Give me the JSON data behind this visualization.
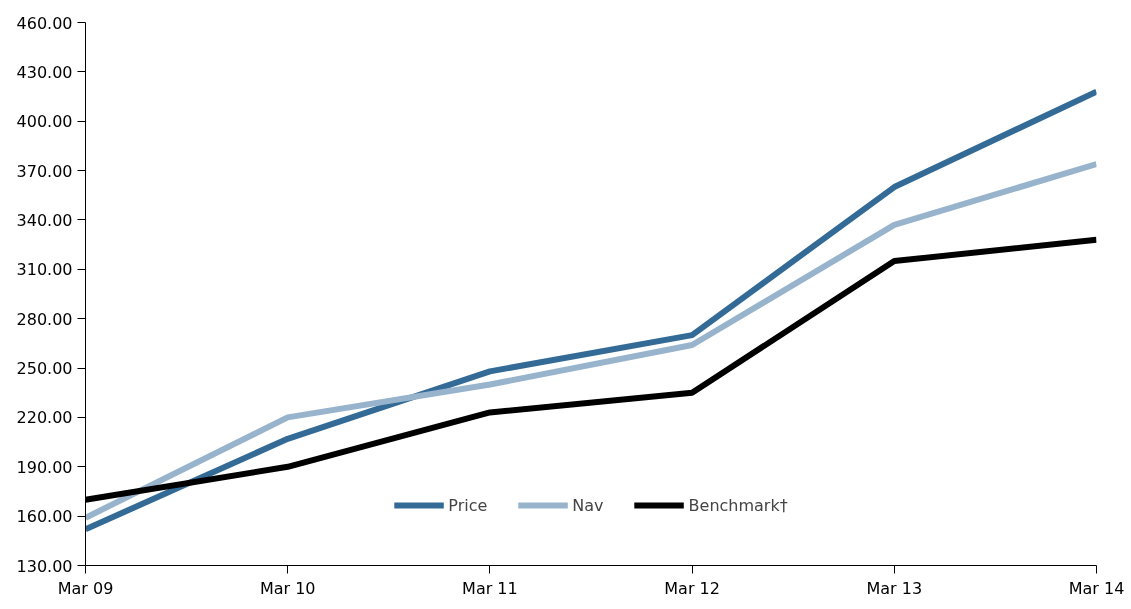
{
  "chart_data": {
    "type": "line",
    "categories": [
      "Mar 09",
      "Mar 10",
      "Mar 11",
      "Mar 12",
      "Mar 13",
      "Mar 14"
    ],
    "series": [
      {
        "name": "Price",
        "color": "#336b96",
        "values": [
          152,
          207,
          248,
          270,
          360,
          418
        ]
      },
      {
        "name": "Nav",
        "color": "#98b4cc",
        "values": [
          159,
          220,
          240,
          264,
          337,
          374
        ]
      },
      {
        "name": "Benchmark†",
        "color": "#000000",
        "values": [
          170,
          190,
          223,
          235,
          315,
          328
        ]
      }
    ],
    "ylim": [
      130,
      460
    ],
    "yticks": [
      {
        "value": 130,
        "label": "130.00"
      },
      {
        "value": 160,
        "label": "160.00"
      },
      {
        "value": 190,
        "label": "190.00"
      },
      {
        "value": 220,
        "label": "220.00"
      },
      {
        "value": 250,
        "label": "250.00"
      },
      {
        "value": 280,
        "label": "280.00"
      },
      {
        "value": 310,
        "label": "310.00"
      },
      {
        "value": 340,
        "label": "340.00"
      },
      {
        "value": 370,
        "label": "370.00"
      },
      {
        "value": 400,
        "label": "400.00"
      },
      {
        "value": 430,
        "label": "430.00"
      },
      {
        "value": 460,
        "label": "460.00"
      }
    ],
    "legend": "bottom",
    "line_style": "solid"
  }
}
